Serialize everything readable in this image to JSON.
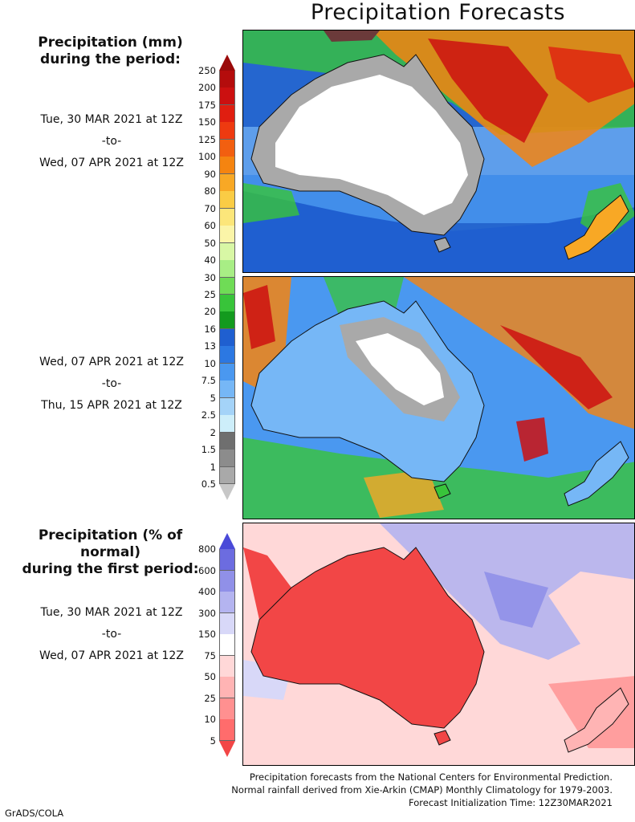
{
  "title": "Precipitation Forecasts",
  "panel_amount": {
    "heading_line1": "Precipitation (mm)",
    "heading_line2": "during the period:",
    "period1": {
      "start": "Tue, 30 MAR 2021 at 12Z",
      "sep": "-to-",
      "end": "Wed, 07 APR 2021 at 12Z"
    },
    "period2": {
      "start": "Wed, 07 APR 2021 at 12Z",
      "sep": "-to-",
      "end": "Thu, 15 APR 2021 at 12Z"
    },
    "colorbar_labels": [
      "250",
      "200",
      "175",
      "150",
      "125",
      "100",
      "90",
      "80",
      "70",
      "60",
      "50",
      "40",
      "30",
      "25",
      "20",
      "16",
      "13",
      "10",
      "7.5",
      "5",
      "2.5",
      "2",
      "1.5",
      "1",
      "0.5"
    ],
    "colorbar_colors": [
      "#9a0a0a",
      "#b40c0c",
      "#cc1010",
      "#e01e10",
      "#ee3a10",
      "#f25f10",
      "#f58410",
      "#f8a825",
      "#facc45",
      "#fce67a",
      "#fbf5a8",
      "#d8f7a5",
      "#a8ee85",
      "#6fdc56",
      "#38c43a",
      "#139a1e",
      "#1f5fd0",
      "#2c78e2",
      "#4a98f0",
      "#76b7f6",
      "#a4d3f8",
      "#cdeefa",
      "#6f6f6f",
      "#8c8c8c",
      "#a9a9a9",
      "#c7c7c7"
    ]
  },
  "panel_percent": {
    "heading_line1": "Precipitation (% of normal)",
    "heading_line2": "during the first period:",
    "period": {
      "start": "Tue, 30 MAR 2021 at 12Z",
      "sep": "-to-",
      "end": "Wed, 07 APR 2021 at 12Z"
    },
    "colorbar_labels": [
      "800",
      "600",
      "400",
      "300",
      "150",
      "75",
      "50",
      "25",
      "10",
      "5"
    ],
    "colorbar_colors": [
      "#4a4ad8",
      "#6c6ce0",
      "#9090e8",
      "#b4b4f0",
      "#d8d8f8",
      "#ffffff",
      "#ffd8d8",
      "#ffb4b4",
      "#ff9090",
      "#ff6c6c",
      "#f24646"
    ]
  },
  "footer": {
    "line1": "Precipitation forecasts from the National Centers for Environmental Prediction.",
    "line2": "Normal rainfall derived from Xie-Arkin (CMAP) Monthly Climatology for 1979-2003.",
    "line3": "Forecast Initialization Time: 12Z30MAR2021"
  },
  "credit": "GrADS/COLA"
}
